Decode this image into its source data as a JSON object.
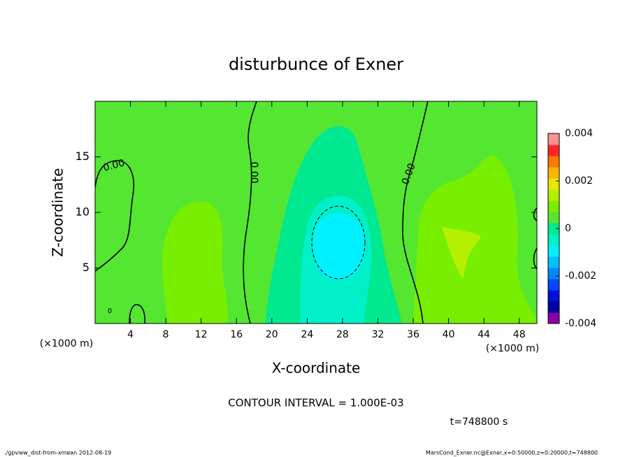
{
  "chart_data": {
    "type": "contour",
    "title": "disturbunce of Exner",
    "x_label": "X-coordinate",
    "y_label": "Z-coordinate",
    "x_unit": "(×1000 m)",
    "y_unit": "(×1000 m)",
    "xlim": [
      0,
      50
    ],
    "ylim": [
      0,
      20
    ],
    "xticks": [
      4,
      8,
      12,
      16,
      20,
      24,
      28,
      32,
      36,
      40,
      44,
      48
    ],
    "yticks": [
      5,
      10,
      15
    ],
    "colorbar": {
      "lim": [
        -0.004,
        0.004
      ],
      "ticks": [
        0.004,
        0.002,
        0,
        -0.002,
        -0.004
      ],
      "colors": [
        "#8a00a8",
        "#0000a0",
        "#0010d8",
        "#0048ff",
        "#0088ff",
        "#00c0ff",
        "#00f0ff",
        "#00f0c8",
        "#00e890",
        "#55e632",
        "#78ee00",
        "#b4f000",
        "#e8e800",
        "#ffb400",
        "#ff7800",
        "#ff2828",
        "#ff9090"
      ]
    },
    "contour_labels": [
      "0.00",
      "0.00",
      "0.00",
      "0"
    ],
    "contour_interval": "CONTOUR INTERVAL = 1.000E-03",
    "time_label": "t=748800 s",
    "footer_left": "./gpview_dist-from-xmean  2012-08-19",
    "footer_right": "MarsCond_Exner.nc@Exner,x=0:50000,z=0:20000,t=748800"
  }
}
